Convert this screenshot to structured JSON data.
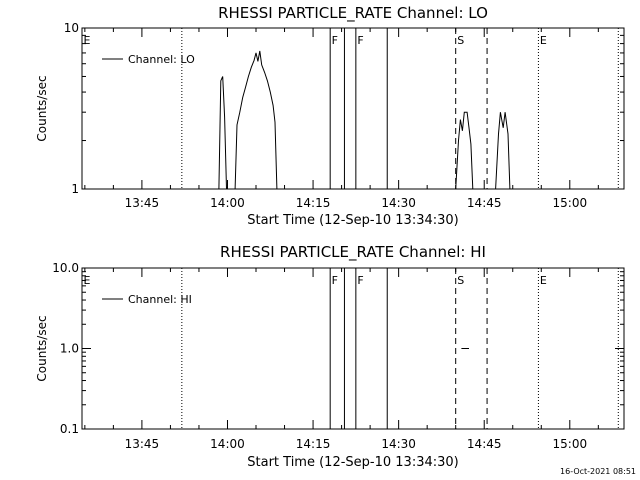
{
  "chart_data": [
    {
      "type": "line",
      "title": "RHESSI PARTICLE_RATE Channel: LO",
      "xlabel": "Start Time (12-Sep-10 13:34:30)",
      "ylabel": "Counts/sec",
      "yscale": "log",
      "ylim": [
        1,
        10
      ],
      "xlim": [
        "13:34:30",
        "15:09:30"
      ],
      "yticks": [
        {
          "value": 1,
          "label": "1"
        },
        {
          "value": 10,
          "label": "10"
        }
      ],
      "xticks": [
        "13:45",
        "14:00",
        "14:15",
        "14:30",
        "14:45",
        "15:00"
      ],
      "legend": "top-left",
      "series": [
        {
          "name": "Channel: LO",
          "color": "#000000",
          "points": [
            [
              "13:58:30",
              1
            ],
            [
              "13:58:50",
              4.7
            ],
            [
              "13:59:10",
              5.0
            ],
            [
              "13:59:30",
              2.8
            ],
            [
              "13:59:50",
              1
            ],
            [
              "14:01:20",
              1
            ],
            [
              "14:01:40",
              2.5
            ],
            [
              "14:02:10",
              3.0
            ],
            [
              "14:02:40",
              3.7
            ],
            [
              "14:03:10",
              4.3
            ],
            [
              "14:03:40",
              5.0
            ],
            [
              "14:04:10",
              5.7
            ],
            [
              "14:04:40",
              6.3
            ],
            [
              "14:05:00",
              7.0
            ],
            [
              "14:05:20",
              6.2
            ],
            [
              "14:05:40",
              7.2
            ],
            [
              "14:06:00",
              5.9
            ],
            [
              "14:06:30",
              5.3
            ],
            [
              "14:07:00",
              4.7
            ],
            [
              "14:07:30",
              4.0
            ],
            [
              "14:08:00",
              3.3
            ],
            [
              "14:08:20",
              2.6
            ],
            [
              "14:08:40",
              1
            ],
            [
              "14:40:00",
              1
            ],
            [
              "14:40:30",
              2.0
            ],
            [
              "14:40:50",
              2.7
            ],
            [
              "14:41:10",
              2.3
            ],
            [
              "14:41:30",
              3.0
            ],
            [
              "14:42:00",
              3.0
            ],
            [
              "14:42:20",
              2.4
            ],
            [
              "14:42:40",
              1.9
            ],
            [
              "14:43:00",
              1
            ],
            [
              "14:47:00",
              1
            ],
            [
              "14:47:30",
              2.2
            ],
            [
              "14:47:50",
              3.0
            ],
            [
              "14:48:20",
              2.4
            ],
            [
              "14:48:40",
              3.0
            ],
            [
              "14:49:10",
              2.2
            ],
            [
              "14:49:30",
              1
            ]
          ]
        }
      ],
      "annotations": [
        {
          "label": "E",
          "time": "13:34:30",
          "line": "none"
        },
        {
          "label": "",
          "time": "13:52:00",
          "line": "dotted"
        },
        {
          "label": "F",
          "time": "14:18:00",
          "line": "solid"
        },
        {
          "label": "",
          "time": "14:20:30",
          "line": "solid"
        },
        {
          "label": "F",
          "time": "14:22:30",
          "line": "solid"
        },
        {
          "label": "",
          "time": "14:28:00",
          "line": "solid"
        },
        {
          "label": "S",
          "time": "14:40:00",
          "line": "dashed"
        },
        {
          "label": "",
          "time": "14:45:30",
          "line": "dashed"
        },
        {
          "label": "E",
          "time": "14:54:30",
          "line": "dotted"
        },
        {
          "label": "",
          "time": "15:08:30",
          "line": "dotted"
        }
      ]
    },
    {
      "type": "line",
      "title": "RHESSI PARTICLE_RATE Channel: HI",
      "xlabel": "Start Time (12-Sep-10 13:34:30)",
      "ylabel": "Counts/sec",
      "yscale": "log",
      "ylim": [
        0.1,
        10
      ],
      "xlim": [
        "13:34:30",
        "15:09:30"
      ],
      "yticks": [
        {
          "value": 0.1,
          "label": "0.1"
        },
        {
          "value": 1,
          "label": "1.0"
        },
        {
          "value": 10,
          "label": "10.0"
        }
      ],
      "xticks": [
        "13:45",
        "14:00",
        "14:15",
        "14:30",
        "14:45",
        "15:00"
      ],
      "legend": "top-left",
      "series": [
        {
          "name": "Channel: HI",
          "color": "#000000",
          "points": [
            [
              "14:41:00",
              1.0
            ],
            [
              "14:42:20",
              1.0
            ]
          ]
        }
      ],
      "annotations": [
        {
          "label": "E",
          "time": "13:34:30",
          "line": "none"
        },
        {
          "label": "",
          "time": "13:52:00",
          "line": "dotted"
        },
        {
          "label": "F",
          "time": "14:18:00",
          "line": "solid"
        },
        {
          "label": "",
          "time": "14:20:30",
          "line": "solid"
        },
        {
          "label": "F",
          "time": "14:22:30",
          "line": "solid"
        },
        {
          "label": "",
          "time": "14:28:00",
          "line": "solid"
        },
        {
          "label": "S",
          "time": "14:40:00",
          "line": "dashed"
        },
        {
          "label": "",
          "time": "14:45:30",
          "line": "dashed"
        },
        {
          "label": "E",
          "time": "14:54:30",
          "line": "dotted"
        },
        {
          "label": "",
          "time": "15:08:30",
          "line": "dotted"
        }
      ]
    }
  ],
  "footer": {
    "timestamp": "16-Oct-2021 08:51"
  }
}
